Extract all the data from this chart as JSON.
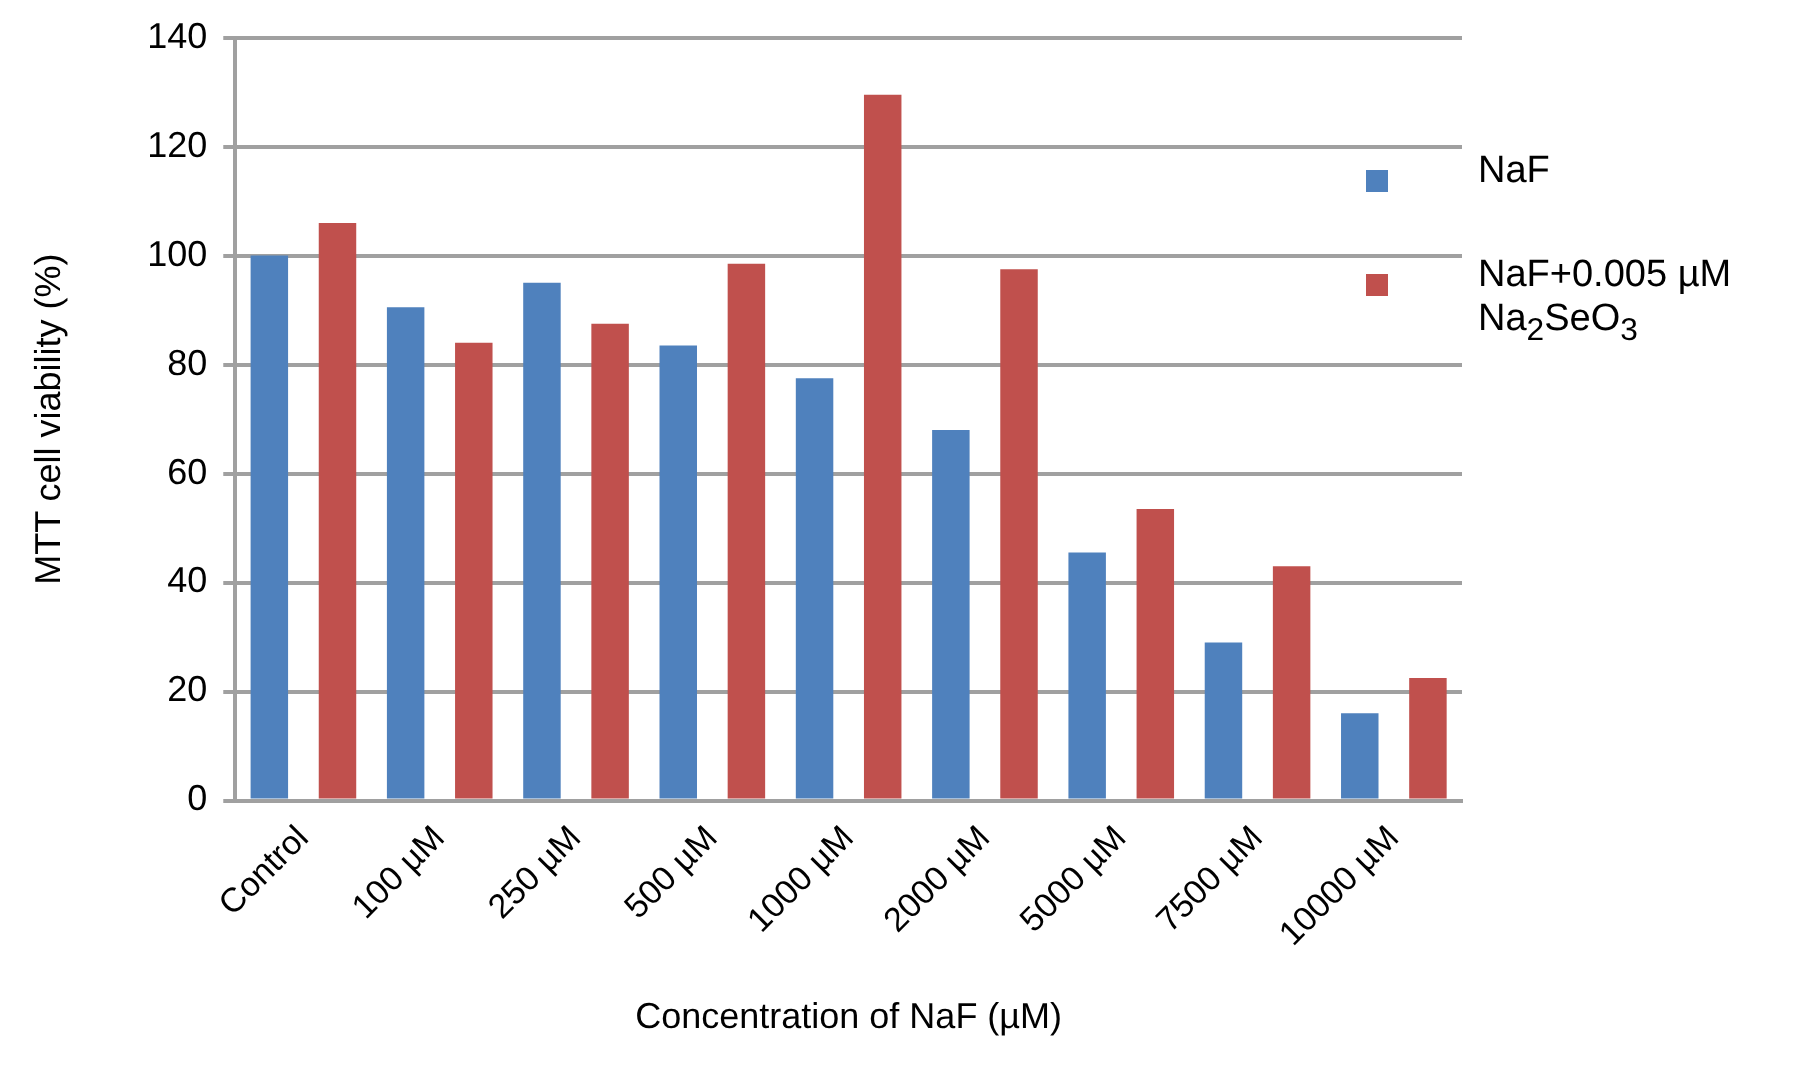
{
  "chart_data": {
    "type": "bar",
    "xlabel": "Concentration of NaF (µM)",
    "ylabel": "MTT cell viability (%)",
    "categories": [
      "Control",
      "100 µM",
      "250 µM",
      "500 µM",
      "1000 µM",
      "2000 µM",
      "5000 µM",
      "7500 µM",
      "10000 µM"
    ],
    "series": [
      {
        "name": "NaF",
        "color": "#4f81bd",
        "values": [
          100,
          90.5,
          95,
          83.5,
          77.5,
          68,
          45.5,
          29,
          16
        ]
      },
      {
        "name": "NaF+0.005 µM Na$_{2}$SeO$_{3}$",
        "color": "#c0504d",
        "values": [
          106,
          84,
          87.5,
          98.5,
          129.5,
          97.5,
          53.5,
          43,
          22.5
        ]
      }
    ],
    "ylim": [
      0,
      140
    ],
    "yticks": [
      0,
      20,
      40,
      60,
      80,
      100,
      120,
      140
    ],
    "grid": "y",
    "legend": "right"
  }
}
